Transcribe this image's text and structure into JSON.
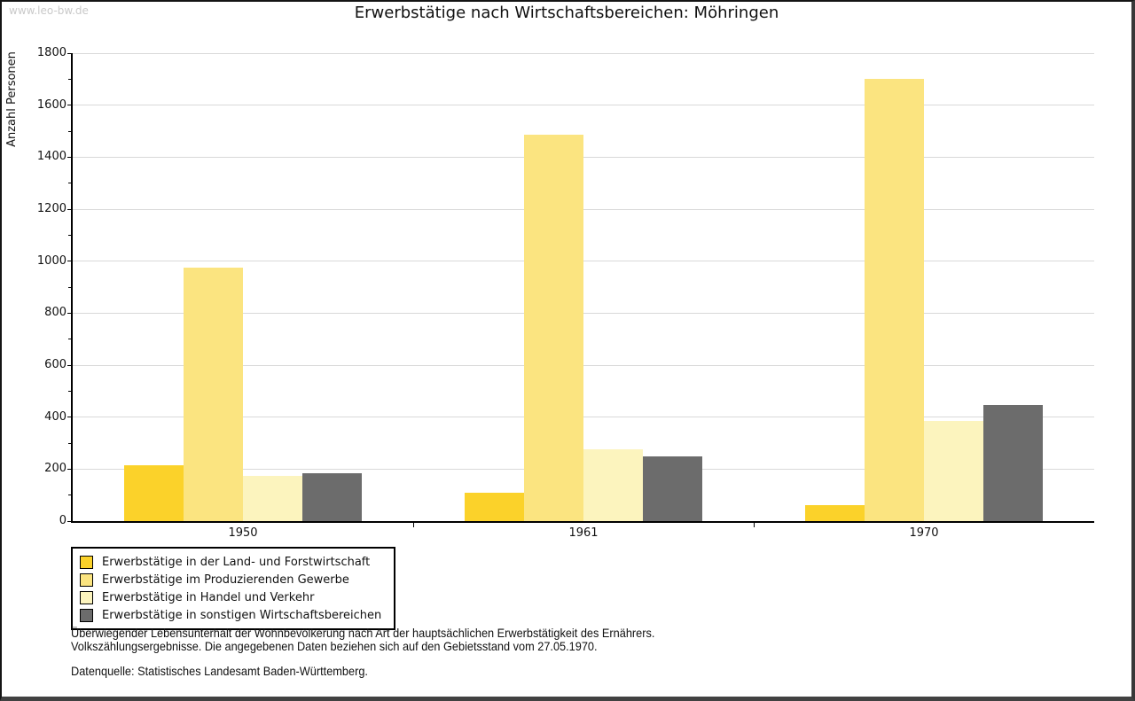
{
  "watermark": "www.leo-bw.de",
  "colors": {
    "grid": "#d9d9d9",
    "axis": "#000000",
    "watermark": "#c9c9c9"
  },
  "chart_data": {
    "type": "bar",
    "title": "Erwerbstätige nach Wirtschaftsbereichen: Möhringen",
    "ylabel": "Anzahl Personen",
    "xlabel": "",
    "categories": [
      "1950",
      "1961",
      "1970"
    ],
    "series": [
      {
        "name": "Erwerbstätige in der Land- und Forstwirtschaft",
        "color": "#fbd22a",
        "values": [
          215,
          110,
          60
        ]
      },
      {
        "name": "Erwerbstätige im Produzierenden Gewerbe",
        "color": "#fbe480",
        "values": [
          975,
          1485,
          1700
        ]
      },
      {
        "name": "Erwerbstätige in Handel und Verkehr",
        "color": "#fcf4be",
        "values": [
          175,
          275,
          385
        ]
      },
      {
        "name": "Erwerbstätige in sonstigen Wirtschaftsbereichen",
        "color": "#6c6c6c",
        "values": [
          185,
          250,
          445
        ]
      }
    ],
    "ylim": [
      0,
      1800
    ],
    "ytick_step": 200,
    "yminor_step": 100,
    "grid": "horizontal",
    "legend_position": "bottom-left"
  },
  "footnotes": {
    "line1": "Überwiegender Lebensunterhalt der Wohnbevölkerung nach Art der hauptsächlichen Erwerbstätigkeit des Ernährers.",
    "line2": "Volkszählungsergebnisse. Die angegebenen Daten beziehen sich auf den Gebietsstand vom 27.05.1970.",
    "source": "Datenquelle: Statistisches Landesamt Baden-Württemberg."
  }
}
